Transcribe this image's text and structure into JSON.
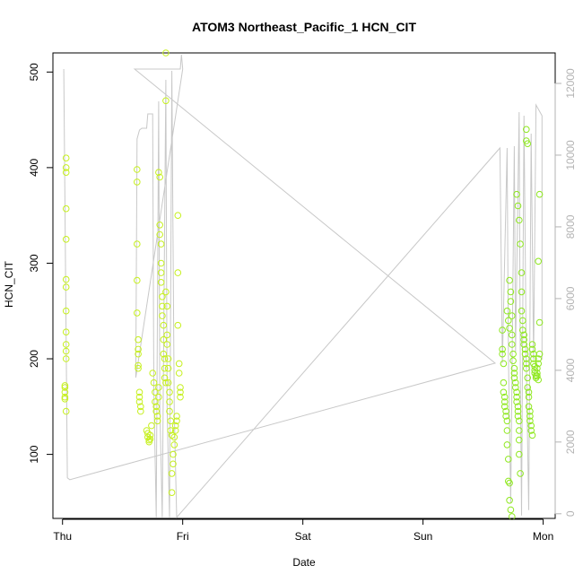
{
  "chart_data": {
    "type": "scatter",
    "title": "ATOM3 Northeast_Pacific_1 HCN_CIT",
    "xlabel": "Date",
    "ylabel": "HCN_CIT",
    "x_ticks": [
      "Thu",
      "Fri",
      "Sat",
      "Sun",
      "Mon"
    ],
    "x_tick_values": [
      0,
      1,
      2,
      3,
      4
    ],
    "xlim": [
      -0.08,
      4.1
    ],
    "ylim": [
      33,
      520
    ],
    "y_ticks": [
      100,
      200,
      300,
      400,
      500
    ],
    "y2_ticks": [
      0,
      2000,
      4000,
      6000,
      8000,
      10000,
      12000
    ],
    "y2lim": [
      -130,
      12850
    ],
    "colors": {
      "points_early": "#c6f01e",
      "points_late": "#8ee81e",
      "line": "#c8c8c8",
      "right_axis": "#b3b3b3"
    },
    "series": [
      {
        "values": [
          [
            0.02,
            170
          ],
          [
            0.02,
            165
          ],
          [
            0.02,
            160
          ],
          [
            0.02,
            158
          ],
          [
            0.03,
            145
          ],
          [
            0.03,
            410
          ],
          [
            0.03,
            400
          ],
          [
            0.03,
            395
          ],
          [
            0.03,
            357
          ],
          [
            0.03,
            325
          ],
          [
            0.03,
            283
          ],
          [
            0.03,
            275
          ],
          [
            0.03,
            250
          ],
          [
            0.03,
            228
          ],
          [
            0.03,
            215
          ],
          [
            0.03,
            208
          ],
          [
            0.03,
            200
          ],
          [
            0.02,
            172
          ],
          [
            0.62,
            398
          ],
          [
            0.62,
            385
          ],
          [
            0.62,
            320
          ],
          [
            0.62,
            282
          ],
          [
            0.62,
            248
          ],
          [
            0.63,
            220
          ],
          [
            0.63,
            210
          ],
          [
            0.63,
            205
          ],
          [
            0.63,
            193
          ],
          [
            0.63,
            190
          ],
          [
            0.64,
            165
          ],
          [
            0.64,
            160
          ],
          [
            0.64,
            155
          ],
          [
            0.65,
            150
          ],
          [
            0.65,
            145
          ],
          [
            0.7,
            125
          ],
          [
            0.71,
            122
          ],
          [
            0.71,
            118
          ],
          [
            0.72,
            115
          ],
          [
            0.72,
            113
          ],
          [
            0.73,
            120
          ],
          [
            0.73,
            116
          ],
          [
            0.74,
            130
          ],
          [
            0.75,
            185
          ],
          [
            0.76,
            175
          ],
          [
            0.77,
            165
          ],
          [
            0.77,
            155
          ],
          [
            0.78,
            150
          ],
          [
            0.78,
            145
          ],
          [
            0.79,
            140
          ],
          [
            0.79,
            135
          ],
          [
            0.8,
            170
          ],
          [
            0.8,
            160
          ],
          [
            0.8,
            395
          ],
          [
            0.81,
            390
          ],
          [
            0.81,
            340
          ],
          [
            0.81,
            330
          ],
          [
            0.82,
            320
          ],
          [
            0.82,
            300
          ],
          [
            0.82,
            290
          ],
          [
            0.82,
            280
          ],
          [
            0.83,
            265
          ],
          [
            0.83,
            255
          ],
          [
            0.83,
            245
          ],
          [
            0.84,
            235
          ],
          [
            0.84,
            220
          ],
          [
            0.84,
            205
          ],
          [
            0.85,
            200
          ],
          [
            0.85,
            190
          ],
          [
            0.85,
            180
          ],
          [
            0.86,
            175
          ],
          [
            0.86,
            520
          ],
          [
            0.86,
            470
          ],
          [
            0.86,
            270
          ],
          [
            0.87,
            255
          ],
          [
            0.87,
            225
          ],
          [
            0.87,
            215
          ],
          [
            0.88,
            200
          ],
          [
            0.88,
            190
          ],
          [
            0.88,
            175
          ],
          [
            0.89,
            165
          ],
          [
            0.89,
            155
          ],
          [
            0.89,
            145
          ],
          [
            0.9,
            135
          ],
          [
            0.9,
            125
          ],
          [
            0.91,
            120
          ],
          [
            0.91,
            60
          ],
          [
            0.91,
            80
          ],
          [
            0.92,
            90
          ],
          [
            0.92,
            100
          ],
          [
            0.93,
            110
          ],
          [
            0.93,
            118
          ],
          [
            0.94,
            125
          ],
          [
            0.94,
            130
          ],
          [
            0.95,
            135
          ],
          [
            0.95,
            140
          ],
          [
            0.96,
            350
          ],
          [
            0.96,
            290
          ],
          [
            0.96,
            235
          ],
          [
            0.97,
            195
          ],
          [
            0.97,
            185
          ],
          [
            0.98,
            170
          ],
          [
            0.98,
            165
          ],
          [
            0.98,
            160
          ]
        ]
      },
      {
        "values": [
          [
            3.66,
            230
          ],
          [
            3.66,
            210
          ],
          [
            3.66,
            205
          ],
          [
            3.67,
            195
          ],
          [
            3.67,
            175
          ],
          [
            3.67,
            165
          ],
          [
            3.68,
            160
          ],
          [
            3.68,
            155
          ],
          [
            3.68,
            150
          ],
          [
            3.69,
            145
          ],
          [
            3.69,
            140
          ],
          [
            3.7,
            135
          ],
          [
            3.7,
            125
          ],
          [
            3.7,
            110
          ],
          [
            3.71,
            95
          ],
          [
            3.71,
            72
          ],
          [
            3.72,
            70
          ],
          [
            3.72,
            52
          ],
          [
            3.73,
            42
          ],
          [
            3.74,
            35
          ],
          [
            3.7,
            250
          ],
          [
            3.71,
            240
          ],
          [
            3.72,
            232
          ],
          [
            3.72,
            282
          ],
          [
            3.73,
            270
          ],
          [
            3.73,
            260
          ],
          [
            3.74,
            245
          ],
          [
            3.74,
            225
          ],
          [
            3.74,
            215
          ],
          [
            3.75,
            205
          ],
          [
            3.75,
            198
          ],
          [
            3.76,
            190
          ],
          [
            3.76,
            185
          ],
          [
            3.76,
            180
          ],
          [
            3.77,
            175
          ],
          [
            3.77,
            170
          ],
          [
            3.78,
            165
          ],
          [
            3.78,
            160
          ],
          [
            3.78,
            155
          ],
          [
            3.79,
            150
          ],
          [
            3.79,
            145
          ],
          [
            3.79,
            140
          ],
          [
            3.8,
            135
          ],
          [
            3.8,
            125
          ],
          [
            3.8,
            115
          ],
          [
            3.8,
            100
          ],
          [
            3.81,
            80
          ],
          [
            3.78,
            372
          ],
          [
            3.79,
            360
          ],
          [
            3.8,
            345
          ],
          [
            3.81,
            320
          ],
          [
            3.82,
            290
          ],
          [
            3.82,
            270
          ],
          [
            3.82,
            250
          ],
          [
            3.83,
            240
          ],
          [
            3.83,
            230
          ],
          [
            3.84,
            225
          ],
          [
            3.84,
            220
          ],
          [
            3.84,
            215
          ],
          [
            3.85,
            210
          ],
          [
            3.85,
            205
          ],
          [
            3.86,
            200
          ],
          [
            3.86,
            195
          ],
          [
            3.86,
            190
          ],
          [
            3.86,
            440
          ],
          [
            3.86,
            428
          ],
          [
            3.87,
            425
          ],
          [
            3.87,
            180
          ],
          [
            3.87,
            170
          ],
          [
            3.88,
            165
          ],
          [
            3.88,
            160
          ],
          [
            3.88,
            150
          ],
          [
            3.89,
            145
          ],
          [
            3.89,
            140
          ],
          [
            3.89,
            135
          ],
          [
            3.9,
            130
          ],
          [
            3.9,
            125
          ],
          [
            3.91,
            120
          ],
          [
            3.91,
            215
          ],
          [
            3.91,
            210
          ],
          [
            3.92,
            205
          ],
          [
            3.92,
            200
          ],
          [
            3.92,
            195
          ],
          [
            3.93,
            192
          ],
          [
            3.93,
            188
          ],
          [
            3.93,
            185
          ],
          [
            3.94,
            182
          ],
          [
            3.94,
            180
          ],
          [
            3.95,
            185
          ],
          [
            3.95,
            190
          ],
          [
            3.96,
            195
          ],
          [
            3.96,
            200
          ],
          [
            3.97,
            205
          ],
          [
            3.96,
            302
          ],
          [
            3.97,
            372
          ],
          [
            3.97,
            238
          ],
          [
            3.96,
            178
          ],
          [
            3.95,
            182
          ]
        ]
      }
    ],
    "right_series": {
      "values": [
        [
          0.01,
          12380
        ],
        [
          0.01,
          12400
        ],
        [
          0.04,
          1000
        ],
        [
          0.06,
          950
        ],
        [
          3.6,
          4200
        ],
        [
          0.6,
          12400
        ],
        [
          0.98,
          12400
        ],
        [
          0.99,
          12800
        ],
        [
          1.0,
          12400
        ],
        [
          0.61,
          3800
        ],
        [
          0.62,
          10450
        ],
        [
          0.64,
          10700
        ],
        [
          0.66,
          10750
        ],
        [
          0.7,
          10750
        ],
        [
          0.71,
          11150
        ],
        [
          0.75,
          11150
        ],
        [
          0.76,
          3500
        ],
        [
          0.78,
          -100
        ],
        [
          0.8,
          11500
        ],
        [
          0.81,
          3000
        ],
        [
          0.83,
          -100
        ],
        [
          0.86,
          12100
        ],
        [
          0.87,
          3000
        ],
        [
          0.89,
          -100
        ],
        [
          0.91,
          12350
        ],
        [
          0.93,
          2800
        ],
        [
          0.95,
          -100
        ],
        [
          3.64,
          10200
        ],
        [
          3.66,
          4200
        ],
        [
          3.7,
          10200
        ],
        [
          3.71,
          4500
        ],
        [
          3.73,
          300
        ],
        [
          3.76,
          10250
        ],
        [
          3.77,
          4500
        ],
        [
          3.8,
          11200
        ],
        [
          3.81,
          4000
        ],
        [
          3.82,
          -50
        ],
        [
          3.84,
          11100
        ],
        [
          3.86,
          4200
        ],
        [
          3.88,
          100
        ],
        [
          3.9,
          10600
        ],
        [
          3.92,
          4300
        ],
        [
          3.94,
          11400
        ],
        [
          3.99,
          11100
        ],
        [
          3.99,
          4300
        ]
      ]
    }
  }
}
